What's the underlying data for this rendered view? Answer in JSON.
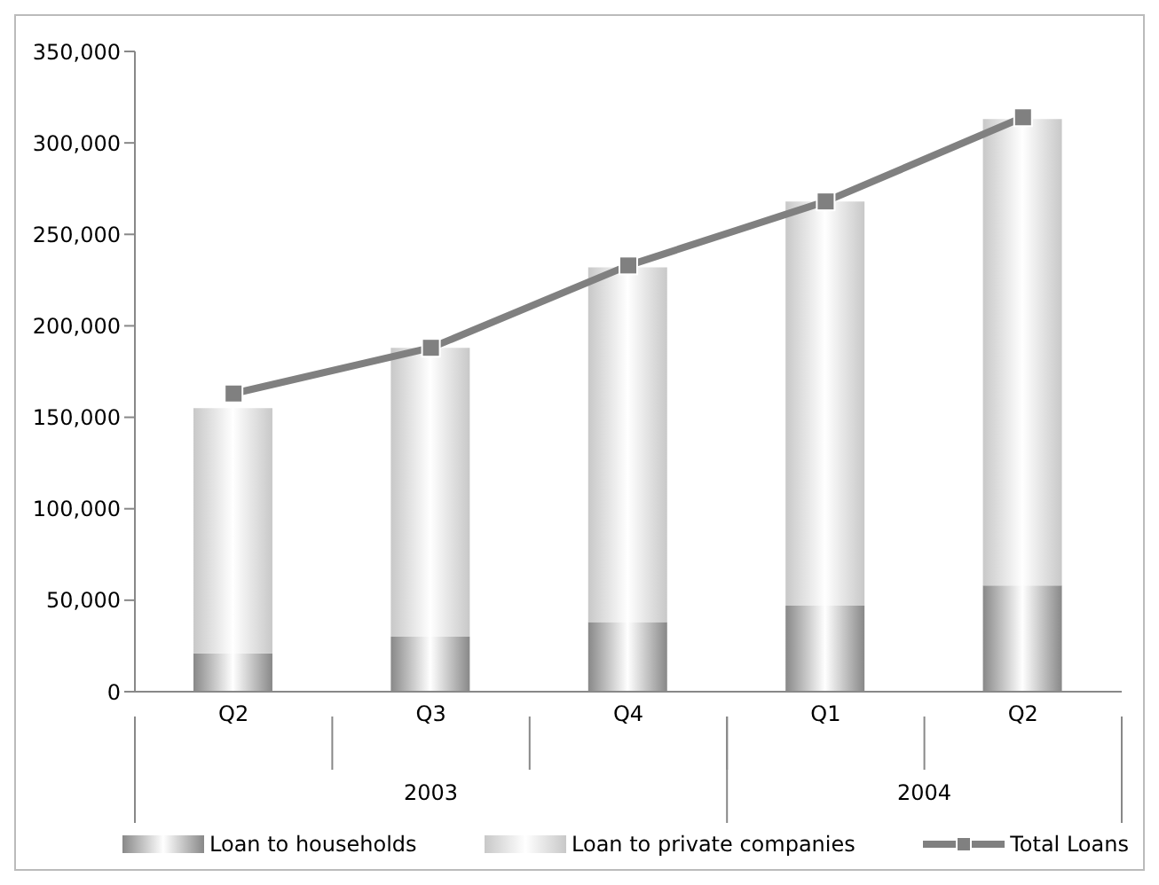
{
  "chart_data": {
    "type": "bar",
    "categories": [
      "Q2",
      "Q3",
      "Q4",
      "Q1",
      "Q2"
    ],
    "annotations": [
      "2003",
      "2004"
    ],
    "stacked": true,
    "series": [
      {
        "name": "Loan to households",
        "color": "#888888",
        "values": [
          21000,
          30000,
          38000,
          47000,
          58000
        ]
      },
      {
        "name": "Loan to private companies",
        "color": "#c8c8c8",
        "values": [
          134000,
          158000,
          194000,
          221000,
          255000
        ]
      },
      {
        "name": "Total Loans",
        "type": "line",
        "color": "#808080",
        "marker": "square",
        "values": [
          163000,
          188000,
          233000,
          268000,
          314000
        ]
      }
    ],
    "ylim": [
      0,
      350000
    ],
    "yticks": [
      0,
      {
        "value": 50000,
        "label": "50,000"
      },
      {
        "value": 100000,
        "label": "100,000"
      },
      {
        "value": 150000,
        "label": "150,000"
      },
      {
        "value": 200000,
        "label": "200,000"
      },
      {
        "value": 250000,
        "label": "250,000"
      },
      {
        "value": 300000,
        "label": "300,000"
      },
      {
        "value": 350000,
        "label": "350,000"
      }
    ],
    "legend": "bottom"
  }
}
